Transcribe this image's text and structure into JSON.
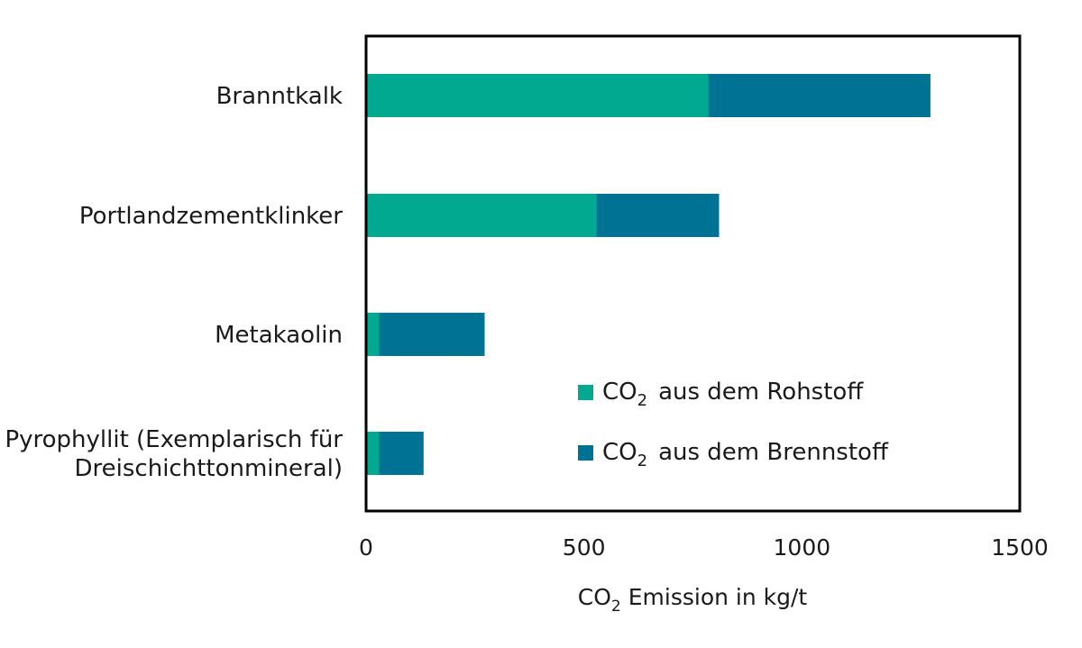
{
  "chart_data": {
    "type": "bar",
    "orientation": "horizontal",
    "stacked": true,
    "categories": [
      "Branntkalk",
      "Portlandzementklinker",
      "Metakaolin",
      "Pyrophyllit (Exemplarisch für Dreischichttonmineral)"
    ],
    "category_label_lines": [
      [
        "Branntkalk"
      ],
      [
        "Portlandzementklinker"
      ],
      [
        "Metakaolin"
      ],
      [
        "Pyrophyllit (Exemplarisch für",
        "Dreischichttonmineral)"
      ]
    ],
    "series": [
      {
        "name": "CO2 aus dem Rohstoff",
        "name_main": "CO",
        "name_sub": "2",
        "name_rest": "aus dem Rohstoff",
        "color": "#00a98f",
        "values": [
          785,
          528,
          30,
          30
        ]
      },
      {
        "name": "CO2 aus dem Brennstoff",
        "name_main": "CO",
        "name_sub": "2",
        "name_rest": "aus dem Brennstoff",
        "color": "#007395",
        "values": [
          510,
          282,
          242,
          102
        ]
      }
    ],
    "xlim": [
      0,
      1500
    ],
    "xticks": [
      0,
      500,
      1000,
      1500
    ],
    "xtick_labels": [
      "0",
      "500",
      "1000",
      "1500"
    ],
    "xlabel": "CO2 Emission in kg/t",
    "xlabel_main": "CO",
    "xlabel_sub": "2",
    "xlabel_rest": "Emission in kg/t",
    "legend": "inside-lower-right",
    "grid": false
  }
}
